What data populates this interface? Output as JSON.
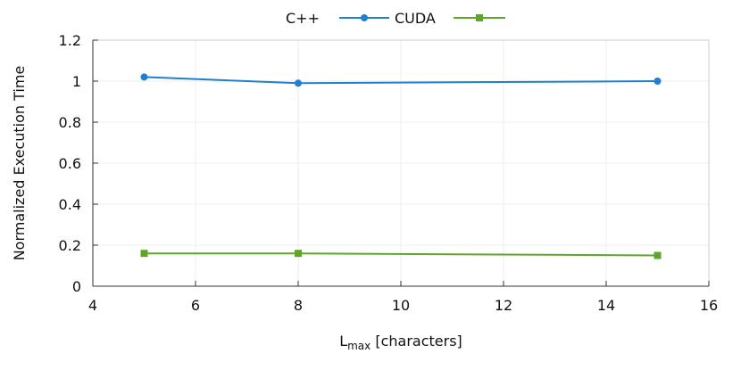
{
  "chart_data": {
    "type": "line",
    "xlabel_main": "L",
    "xlabel_sub": "max",
    "xlabel_rest": " [characters]",
    "ylabel": "Normalized Execution Time",
    "xlim": [
      4,
      16
    ],
    "ylim": [
      0,
      1.2
    ],
    "xticks": [
      "4",
      "6",
      "8",
      "10",
      "12",
      "14",
      "16"
    ],
    "yticks": [
      "0",
      "0.2",
      "0.4",
      "0.6",
      "0.8",
      "1",
      "1.2"
    ],
    "grid": true,
    "legend_position": "top",
    "series": [
      {
        "name": "C++",
        "color": "#1f7fd0",
        "marker": "circle",
        "x": [
          5,
          8,
          15
        ],
        "y": [
          1.02,
          0.99,
          1.0
        ]
      },
      {
        "name": "CUDA",
        "color": "#5fa52a",
        "marker": "square",
        "x": [
          5,
          8,
          15
        ],
        "y": [
          0.16,
          0.16,
          0.15
        ]
      }
    ]
  }
}
